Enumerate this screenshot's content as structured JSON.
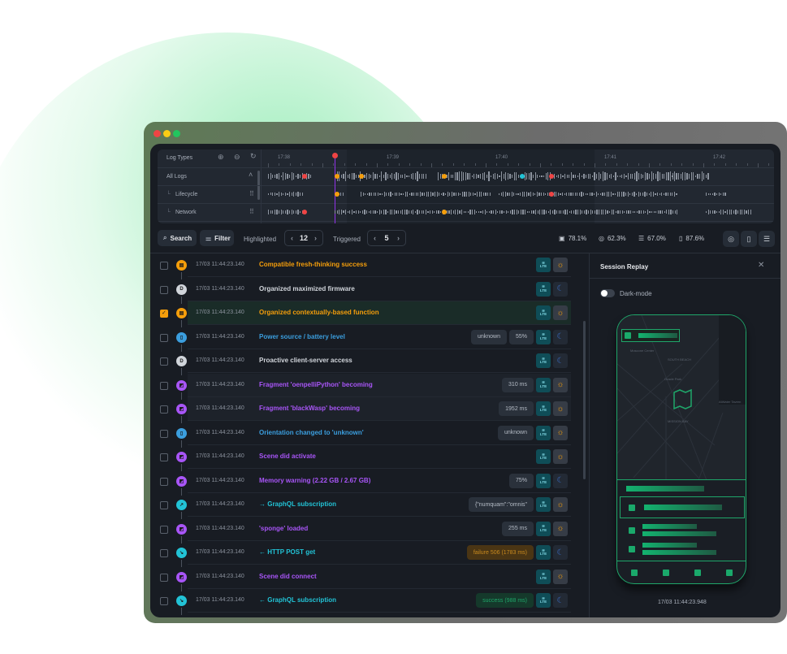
{
  "window": {
    "dot_colors": [
      "#ef4444",
      "#facc15",
      "#22c55e"
    ]
  },
  "timeline": {
    "header": "Log Types",
    "ticks": [
      "17:38",
      "17:39",
      "17:40",
      "17:41",
      "17:42"
    ],
    "rows": [
      {
        "label": "All Logs"
      },
      {
        "label": "Lifecycle"
      },
      {
        "label": "Network"
      }
    ]
  },
  "toolbar": {
    "search_label": "Search",
    "filter_label": "Filter",
    "highlighted_label": "Highlighted",
    "highlighted_value": "12",
    "triggered_label": "Triggered",
    "triggered_value": "5",
    "stats": [
      {
        "icon": "cpu-icon",
        "value": "78.1%"
      },
      {
        "icon": "database-icon",
        "value": "62.3%"
      },
      {
        "icon": "storage-icon",
        "value": "67.0%"
      },
      {
        "icon": "battery-icon",
        "value": "87.6%"
      }
    ]
  },
  "colors": {
    "lifecycle": "#f59e0b",
    "default": "#d1d5db",
    "device": "#3b9ede",
    "ui": "#a855f7",
    "network": "#22c3d6",
    "accent": "#1fa66a"
  },
  "logs": [
    {
      "type": "lifecycle",
      "glyph": "▤",
      "time": "17/03 11:44:23.140",
      "message": "Compatible fresh-thinking success",
      "badges": [],
      "theme": "sun",
      "checked": false
    },
    {
      "type": "default",
      "glyph": "D",
      "time": "17/03 11:44:23.140",
      "message": "Organized maximized firmware",
      "badges": [],
      "theme": "moon",
      "checked": false
    },
    {
      "type": "lifecycle",
      "glyph": "▤",
      "time": "17/03 11:44:23.140",
      "message": "Organized contextually-based function",
      "badges": [],
      "theme": "sun",
      "checked": true
    },
    {
      "type": "device",
      "glyph": "▯",
      "time": "17/03 11:44:23.140",
      "message": "Power source / battery level",
      "badges": [
        "unknown",
        "55%"
      ],
      "theme": "moon",
      "checked": false
    },
    {
      "type": "default",
      "glyph": "D",
      "time": "17/03 11:44:23.140",
      "message": "Proactive client-server access",
      "badges": [],
      "theme": "moon",
      "checked": false
    },
    {
      "type": "ui",
      "glyph": "◩",
      "time": "17/03 11:44:23.140",
      "message": "Fragment 'oenpelliPython' becoming",
      "badges": [
        "310 ms"
      ],
      "theme": "sun",
      "checked": false
    },
    {
      "type": "ui",
      "glyph": "◩",
      "time": "17/03 11:44:23.140",
      "message": "Fragment 'blackWasp' becoming",
      "badges": [
        "1952 ms"
      ],
      "theme": "sun",
      "checked": false
    },
    {
      "type": "device",
      "glyph": "▯",
      "time": "17/03 11:44:23.140",
      "message": "Orientation changed to 'unknown'",
      "badges": [
        "unknown"
      ],
      "theme": "sun",
      "checked": false
    },
    {
      "type": "ui",
      "glyph": "◩",
      "time": "17/03 11:44:23.140",
      "message": "Scene did activate",
      "badges": [],
      "theme": "sun",
      "checked": false
    },
    {
      "type": "ui",
      "glyph": "◩",
      "time": "17/03 11:44:23.140",
      "message": "Memory warning (2.22 GB / 2.67 GB)",
      "badges": [
        "75%"
      ],
      "theme": "moon",
      "checked": false
    },
    {
      "type": "network",
      "glyph": "↗",
      "time": "17/03 11:44:23.140",
      "message": "→ GraphQL subscription",
      "badges": [
        "{\"numquam\":\"omnis\""
      ],
      "theme": "sun",
      "checked": false
    },
    {
      "type": "ui",
      "glyph": "◩",
      "time": "17/03 11:44:23.140",
      "message": "'sponge' loaded",
      "badges": [
        "255 ms"
      ],
      "theme": "sun",
      "checked": false
    },
    {
      "type": "network",
      "glyph": "↘",
      "time": "17/03 11:44:23.140",
      "message": "← HTTP POST get",
      "badges": [
        "failure 506 (1783 ms)"
      ],
      "badge_status": "failure",
      "theme": "moon",
      "checked": false
    },
    {
      "type": "ui",
      "glyph": "◩",
      "time": "17/03 11:44:23.140",
      "message": "Scene did connect",
      "badges": [],
      "theme": "sun",
      "checked": false
    },
    {
      "type": "network",
      "glyph": "↘",
      "time": "17/03 11:44:23.140",
      "message": "← GraphQL subscription",
      "badges": [
        "success (988 ms)"
      ],
      "badge_status": "success",
      "theme": "moon",
      "checked": false
    }
  ],
  "replay": {
    "title": "Session Replay",
    "dark_mode_label": "Dark-mode",
    "dark_mode": false,
    "timestamp": "17/03 11:44:23.948",
    "map_labels": [
      "Moscone Center",
      "SOUTH BEACH",
      "Oracle Park",
      "MISSION BAY",
      "Chase Center",
      "Chase Center",
      "AtWater Tavern"
    ]
  }
}
